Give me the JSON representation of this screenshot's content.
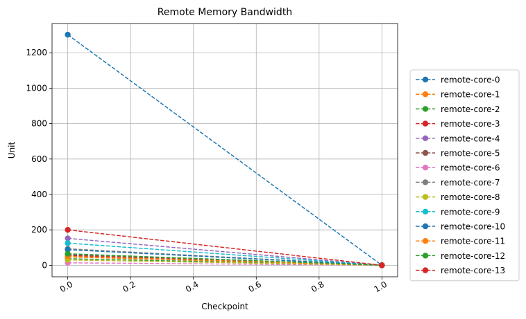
{
  "chart_data": {
    "type": "line",
    "title": "Remote Memory Bandwidth",
    "xlabel": "Checkpoint",
    "ylabel": "Unit",
    "xlim": [
      -0.05,
      1.05
    ],
    "ylim": [
      -65,
      1365
    ],
    "xticks": [
      0.0,
      0.2,
      0.4,
      0.6,
      0.8,
      1.0
    ],
    "xtick_labels": [
      "0.0",
      "0.2",
      "0.4",
      "0.6",
      "0.8",
      "1.0"
    ],
    "yticks": [
      0,
      200,
      400,
      600,
      800,
      1000,
      1200
    ],
    "ytick_labels": [
      "0",
      "200",
      "400",
      "600",
      "800",
      "1000",
      "1200"
    ],
    "grid": true,
    "legend_position": "right, outside plot",
    "line_style": "dashed with circle markers",
    "x": [
      0.0,
      1.0
    ],
    "series": [
      {
        "name": "remote-core-0",
        "color": "#1f77b4",
        "values": [
          1302,
          0
        ]
      },
      {
        "name": "remote-core-1",
        "color": "#ff7f0e",
        "values": [
          47,
          0
        ]
      },
      {
        "name": "remote-core-2",
        "color": "#2ca02c",
        "values": [
          37,
          0
        ]
      },
      {
        "name": "remote-core-3",
        "color": "#d62728",
        "values": [
          55,
          0
        ]
      },
      {
        "name": "remote-core-4",
        "color": "#9467bd",
        "values": [
          152,
          0
        ]
      },
      {
        "name": "remote-core-5",
        "color": "#8c564b",
        "values": [
          60,
          0
        ]
      },
      {
        "name": "remote-core-6",
        "color": "#e377c2",
        "values": [
          14,
          0
        ]
      },
      {
        "name": "remote-core-7",
        "color": "#7f7f7f",
        "values": [
          93,
          0
        ]
      },
      {
        "name": "remote-core-8",
        "color": "#bcbd22",
        "values": [
          30,
          0
        ]
      },
      {
        "name": "remote-core-9",
        "color": "#17becf",
        "values": [
          125,
          0
        ]
      },
      {
        "name": "remote-core-10",
        "color": "#1f77b4",
        "values": [
          88,
          0
        ]
      },
      {
        "name": "remote-core-11",
        "color": "#ff7f0e",
        "values": [
          50,
          0
        ]
      },
      {
        "name": "remote-core-12",
        "color": "#2ca02c",
        "values": [
          65,
          0
        ]
      },
      {
        "name": "remote-core-13",
        "color": "#d62728",
        "values": [
          200,
          0
        ]
      }
    ]
  }
}
